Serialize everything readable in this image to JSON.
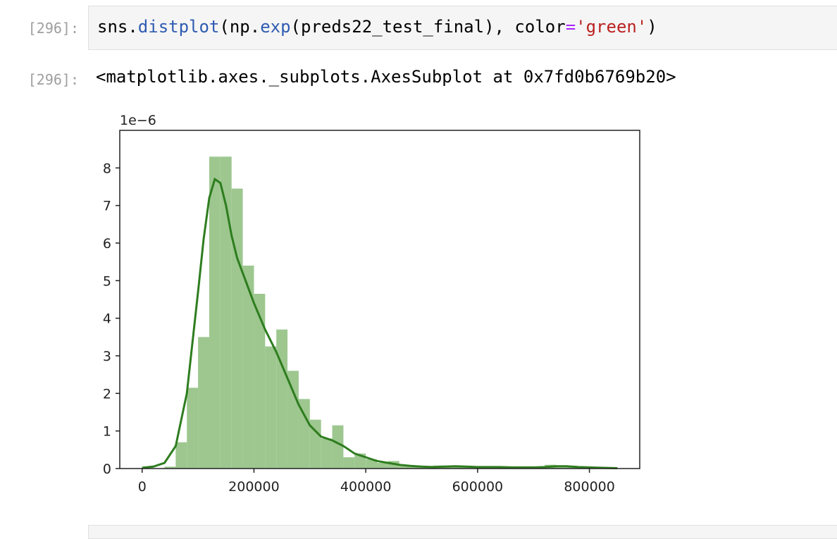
{
  "cell": {
    "input_prompt": "[296]:",
    "output_prompt": "[296]:",
    "code": {
      "t1": "sns.",
      "t2": "distplot",
      "t3": "(np.",
      "t4": "exp",
      "t5": "(preds22_test_final), color",
      "t6": "=",
      "t7": "'green'",
      "t8": ")"
    },
    "output_text": "<matplotlib.axes._subplots.AxesSubplot at 0x7fd0b6769b20>"
  },
  "chart_data": {
    "type": "bar",
    "title": "",
    "xlabel": "",
    "ylabel": "",
    "y_offset_text": "1e−6",
    "xlim": [
      -40000,
      890000
    ],
    "ylim": [
      0,
      9.0
    ],
    "xticks": [
      0,
      200000,
      400000,
      600000,
      800000
    ],
    "xtick_labels": [
      "0",
      "200000",
      "400000",
      "600000",
      "800000"
    ],
    "yticks": [
      0,
      1,
      2,
      3,
      4,
      5,
      6,
      7,
      8
    ],
    "ytick_labels": [
      "0",
      "1",
      "2",
      "3",
      "4",
      "5",
      "6",
      "7",
      "8"
    ],
    "grid": false,
    "colors": {
      "hist": "#9dc78f",
      "kde": "#2e7d1f"
    },
    "histogram": {
      "bin_edges": [
        40000,
        60000,
        80000,
        100000,
        120000,
        140000,
        160000,
        180000,
        200000,
        220000,
        240000,
        260000,
        280000,
        300000,
        320000,
        340000,
        360000,
        380000,
        400000,
        420000,
        440000,
        460000,
        480000,
        500000,
        520000,
        540000,
        560000,
        580000,
        600000,
        620000,
        640000,
        660000,
        680000,
        700000,
        720000,
        740000,
        760000,
        780000,
        800000,
        820000,
        840000
      ],
      "values": [
        0.05,
        0.7,
        2.15,
        3.5,
        8.3,
        8.3,
        7.45,
        5.4,
        4.65,
        3.25,
        3.7,
        2.6,
        1.85,
        1.3,
        0.8,
        1.15,
        0.3,
        0.4,
        0.25,
        0.15,
        0.2,
        0.1,
        0.05,
        0.05,
        0.08,
        0.03,
        0.05,
        0.03,
        0.03,
        0.05,
        0.03,
        0.02,
        0.02,
        0.02,
        0.1,
        0.03,
        0.07,
        0.05,
        0.02,
        0.02
      ]
    },
    "kde": {
      "x": [
        0,
        20000,
        40000,
        60000,
        80000,
        100000,
        110000,
        120000,
        130000,
        140000,
        150000,
        160000,
        170000,
        180000,
        200000,
        220000,
        240000,
        260000,
        280000,
        300000,
        320000,
        340000,
        360000,
        380000,
        400000,
        420000,
        440000,
        460000,
        480000,
        500000,
        520000,
        540000,
        560000,
        580000,
        600000,
        620000,
        640000,
        660000,
        680000,
        700000,
        720000,
        740000,
        760000,
        780000,
        800000,
        820000,
        850000
      ],
      "y": [
        0.02,
        0.05,
        0.15,
        0.6,
        2.0,
        4.7,
        6.1,
        7.2,
        7.7,
        7.6,
        7.0,
        6.2,
        5.6,
        5.2,
        4.4,
        3.7,
        3.1,
        2.4,
        1.7,
        1.15,
        0.85,
        0.75,
        0.6,
        0.4,
        0.3,
        0.2,
        0.15,
        0.1,
        0.07,
        0.05,
        0.04,
        0.05,
        0.06,
        0.05,
        0.04,
        0.04,
        0.04,
        0.03,
        0.03,
        0.03,
        0.04,
        0.06,
        0.06,
        0.04,
        0.03,
        0.02,
        0.01
      ]
    }
  }
}
